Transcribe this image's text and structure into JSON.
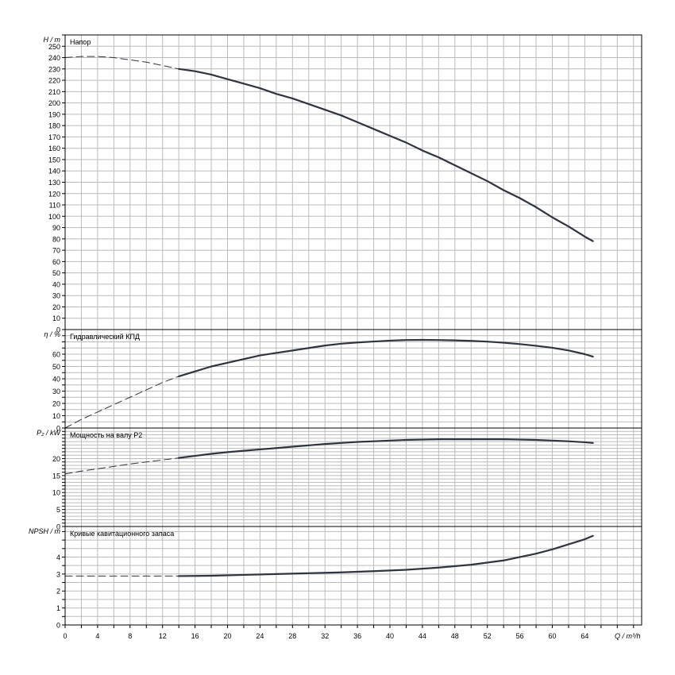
{
  "colors": {
    "grid": "#bcbcbc",
    "frame": "#000000",
    "curve": "#2f3440",
    "background": "#ffffff"
  },
  "chart_data": {
    "type": "line",
    "x_axis": {
      "label": "Q / m³/h",
      "range": [
        0,
        71
      ],
      "ticks": [
        0,
        4,
        8,
        12,
        16,
        20,
        24,
        28,
        32,
        36,
        40,
        44,
        48,
        52,
        56,
        60,
        64
      ],
      "minor_step": 2
    },
    "grid": true,
    "panels": [
      {
        "id": "head",
        "title": "Напор",
        "ylabel": "H / m",
        "ylim": [
          0,
          260
        ],
        "ytick_step": 10,
        "label_step": 10,
        "ytick_label_max": 250,
        "segments": [
          {
            "style": "dashed",
            "x": [
              0,
              2,
              4,
              6,
              8,
              10,
              12,
              14
            ],
            "y": [
              240,
              241,
              241,
              240,
              238,
              236,
              233,
              230
            ]
          },
          {
            "style": "solid",
            "x": [
              14,
              16,
              18,
              20,
              22,
              24,
              26,
              28,
              30,
              32,
              34,
              36,
              38,
              40,
              42,
              44,
              46,
              48,
              50,
              52,
              54,
              56,
              58,
              60,
              62,
              64,
              65
            ],
            "y": [
              230,
              228,
              225,
              221,
              217,
              213,
              208,
              204,
              199,
              194,
              189,
              183,
              177,
              171,
              165,
              158,
              152,
              145,
              138,
              131,
              123,
              116,
              108,
              99,
              91,
              82,
              78
            ]
          }
        ]
      },
      {
        "id": "efficiency",
        "title": "Гидравлический КПД",
        "ylabel": "η / %",
        "ylim": [
          0,
          80
        ],
        "ytick_step": 5,
        "label_step": 10,
        "ytick_label_max": 60,
        "segments": [
          {
            "style": "dashed",
            "x": [
              0,
              2,
              4,
              6,
              8,
              10,
              12,
              14
            ],
            "y": [
              0,
              7,
              13,
              19,
              25,
              31,
              37,
              42
            ]
          },
          {
            "style": "solid",
            "x": [
              14,
              16,
              18,
              20,
              22,
              24,
              26,
              28,
              30,
              32,
              34,
              36,
              38,
              40,
              42,
              44,
              46,
              48,
              50,
              52,
              54,
              56,
              58,
              60,
              62,
              64,
              65
            ],
            "y": [
              42,
              46,
              50,
              53,
              56,
              59,
              61,
              63,
              65,
              67,
              68.5,
              69.5,
              70.3,
              71,
              71.5,
              71.6,
              71.5,
              71.2,
              70.8,
              70.2,
              69.3,
              68.2,
              66.8,
              65.2,
              63,
              60,
              58
            ]
          }
        ]
      },
      {
        "id": "power",
        "title": "Мощность на валу P2",
        "ylabel": "P₂ / kW",
        "ylim": [
          0,
          29
        ],
        "ytick_step": 1,
        "label_step": 5,
        "ytick_label_max": 20,
        "segments": [
          {
            "style": "dashed",
            "x": [
              0,
              2,
              4,
              6,
              8,
              10,
              12,
              14
            ],
            "y": [
              15.5,
              16.3,
              17,
              17.7,
              18.4,
              19,
              19.6,
              20.2
            ]
          },
          {
            "style": "solid",
            "x": [
              14,
              16,
              18,
              20,
              22,
              24,
              26,
              28,
              30,
              32,
              34,
              36,
              38,
              40,
              42,
              44,
              46,
              48,
              50,
              52,
              54,
              56,
              58,
              60,
              62,
              64,
              65
            ],
            "y": [
              20.2,
              20.8,
              21.4,
              21.9,
              22.3,
              22.7,
              23.1,
              23.5,
              23.9,
              24.3,
              24.6,
              24.9,
              25.1,
              25.3,
              25.5,
              25.6,
              25.7,
              25.7,
              25.7,
              25.7,
              25.7,
              25.6,
              25.5,
              25.3,
              25.1,
              24.8,
              24.6
            ]
          }
        ]
      },
      {
        "id": "npsh",
        "title": "Кривые кавитационного запаса",
        "ylabel": "NPSH / m",
        "ylim": [
          0,
          5.8
        ],
        "ytick_step": 0.5,
        "label_step": 1,
        "ytick_label_max": 4,
        "segments": [
          {
            "style": "dashed",
            "x": [
              0,
              2,
              4,
              6,
              8,
              10,
              12,
              14
            ],
            "y": [
              2.88,
              2.88,
              2.88,
              2.88,
              2.88,
              2.88,
              2.88,
              2.88
            ]
          },
          {
            "style": "solid",
            "x": [
              14,
              18,
              22,
              26,
              30,
              34,
              38,
              42,
              46,
              50,
              54,
              58,
              60,
              62,
              64,
              65
            ],
            "y": [
              2.88,
              2.9,
              2.95,
              3,
              3.05,
              3.1,
              3.17,
              3.25,
              3.38,
              3.55,
              3.8,
              4.2,
              4.45,
              4.75,
              5.05,
              5.25
            ]
          }
        ]
      }
    ]
  }
}
